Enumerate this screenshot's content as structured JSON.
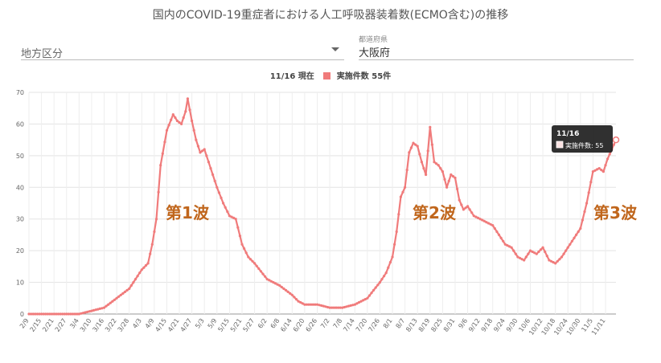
{
  "header": {
    "title": "国内のCOVID-19重症者における人工呼吸器装着数(ECMO含む)の推移"
  },
  "filters": {
    "region_placeholder": "地方区分",
    "prefecture_label": "都道府県",
    "prefecture_value": "大阪府"
  },
  "legend": {
    "date_text": "11/16 現在",
    "series_text": "実施件数 55件"
  },
  "tooltip": {
    "date": "11/16",
    "text": "実施件数: 55"
  },
  "annotations": [
    "第1波",
    "第2波",
    "第3波"
  ],
  "colors": {
    "line": "#f07b7b",
    "annotation": "#c0661c",
    "tooltip_bg": "#1e1e1e"
  },
  "chart_data": {
    "type": "line",
    "title": "国内のCOVID-19重症者における人工呼吸器装着数(ECMO含む)の推移",
    "xlabel": "",
    "ylabel": "",
    "ylim": [
      0,
      70
    ],
    "yticks": [
      0,
      10,
      20,
      30,
      40,
      50,
      60,
      70
    ],
    "grid": true,
    "legend": "top-center",
    "xticks": [
      "2/9",
      "2/15",
      "2/21",
      "2/27",
      "3/4",
      "3/10",
      "3/16",
      "3/22",
      "3/28",
      "4/3",
      "4/9",
      "4/15",
      "4/21",
      "4/27",
      "5/3",
      "5/9",
      "5/15",
      "5/21",
      "5/27",
      "6/2",
      "6/8",
      "6/14",
      "6/20",
      "6/26",
      "7/2",
      "7/8",
      "7/14",
      "7/20",
      "7/26",
      "8/1",
      "8/7",
      "8/13",
      "8/19",
      "8/25",
      "8/31",
      "9/6",
      "9/12",
      "9/18",
      "9/24",
      "9/30",
      "10/6",
      "10/12",
      "10/18",
      "10/24",
      "10/30",
      "11/5",
      "11/11"
    ],
    "series": [
      {
        "name": "実施件数",
        "start_date": "2/9",
        "end_date": "11/16",
        "keypoints_date": [
          "2/9",
          "3/1",
          "3/4",
          "3/10",
          "3/16",
          "3/22",
          "3/28",
          "4/1",
          "4/3",
          "4/6",
          "4/8",
          "4/10",
          "4/12",
          "4/15",
          "4/18",
          "4/20",
          "4/22",
          "4/24",
          "4/25",
          "4/27",
          "4/29",
          "5/1",
          "5/3",
          "5/6",
          "5/9",
          "5/12",
          "5/15",
          "5/18",
          "5/21",
          "5/24",
          "5/27",
          "6/2",
          "6/8",
          "6/14",
          "6/17",
          "6/20",
          "6/26",
          "7/2",
          "7/8",
          "7/14",
          "7/17",
          "7/20",
          "7/26",
          "7/29",
          "8/1",
          "8/3",
          "8/5",
          "8/7",
          "8/9",
          "8/11",
          "8/13",
          "8/15",
          "8/17",
          "8/19",
          "8/21",
          "8/23",
          "8/25",
          "8/27",
          "8/29",
          "8/31",
          "9/2",
          "9/4",
          "9/6",
          "9/9",
          "9/12",
          "9/15",
          "9/18",
          "9/21",
          "9/24",
          "9/27",
          "9/30",
          "10/3",
          "10/6",
          "10/9",
          "10/12",
          "10/15",
          "10/18",
          "10/21",
          "10/24",
          "10/27",
          "10/30",
          "11/2",
          "11/5",
          "11/8",
          "11/10",
          "11/12",
          "11/14",
          "11/16"
        ],
        "keypoints_value": [
          0,
          0,
          0,
          1,
          2,
          5,
          8,
          12,
          14,
          16,
          22,
          30,
          47,
          58,
          63,
          61,
          60,
          64,
          68,
          61,
          55,
          51,
          52,
          46,
          40,
          35,
          31,
          30,
          22,
          18,
          16,
          11,
          9,
          6,
          4,
          3,
          3,
          2,
          2,
          3,
          4,
          5,
          10,
          13,
          18,
          26,
          37,
          40,
          51,
          54,
          53,
          48,
          44,
          59,
          48,
          47,
          45,
          40,
          44,
          43,
          36,
          33,
          34,
          31,
          30,
          29,
          28,
          25,
          22,
          21,
          18,
          17,
          20,
          19,
          21,
          17,
          16,
          18,
          21,
          24,
          27,
          35,
          45,
          46,
          45,
          49,
          52,
          55
        ]
      }
    ]
  }
}
